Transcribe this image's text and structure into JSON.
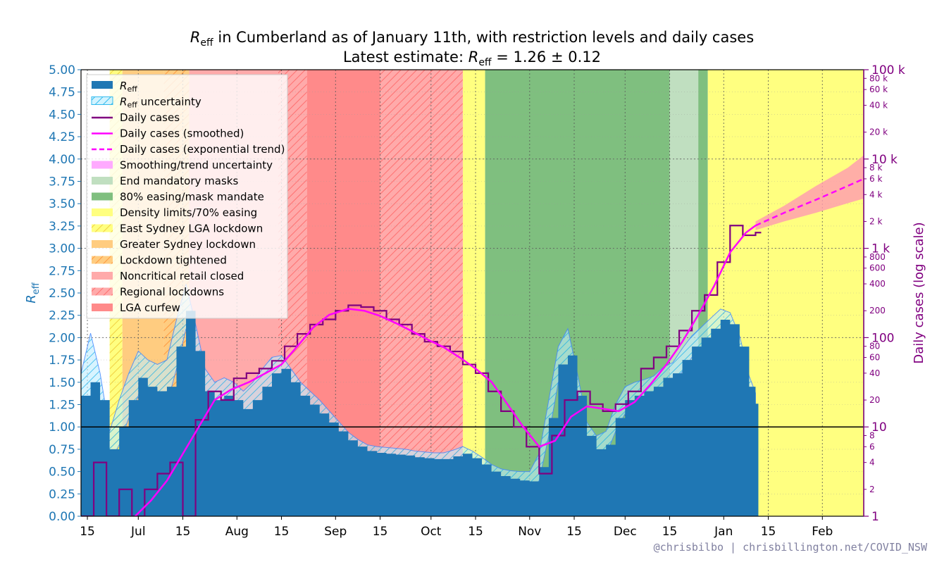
{
  "chart_data": {
    "type": "area",
    "title": "R_eff in Cumberland as of January 11th, with restriction levels and daily cases",
    "subtitle": "Latest estimate: R_eff = 1.26 ± 0.12",
    "title_parts": {
      "line1_symbol": "R",
      "line1_sub": "eff",
      "line1_rest": " in Cumberland as of January 11th, with restriction levels and daily cases",
      "line2_prefix": "Latest estimate: ",
      "line2_symbol": "R",
      "line2_sub": "eff",
      "line2_rest": " = 1.26 ± 0.12"
    },
    "ylabel_left": {
      "symbol": "R",
      "sub": "eff"
    },
    "ylabel_right": "Daily cases (log scale)",
    "ylim_left": [
      0,
      5
    ],
    "ylim_right": [
      1,
      100000
    ],
    "yticks_left": [
      "0.00",
      "0.25",
      "0.50",
      "0.75",
      "1.00",
      "1.25",
      "1.50",
      "1.75",
      "2.00",
      "2.25",
      "2.50",
      "2.75",
      "3.00",
      "3.25",
      "3.50",
      "3.75",
      "4.00",
      "4.25",
      "4.50",
      "4.75",
      "5.00"
    ],
    "yticks_right_major": [
      {
        "value": 1,
        "label": "1"
      },
      {
        "value": 10,
        "label": "10"
      },
      {
        "value": 100,
        "label": "100"
      },
      {
        "value": 1000,
        "label": "1 k"
      },
      {
        "value": 10000,
        "label": "10 k"
      },
      {
        "value": 100000,
        "label": "100 k"
      }
    ],
    "yticks_right_minor": [
      {
        "value": 2,
        "label": "2"
      },
      {
        "value": 4,
        "label": "4"
      },
      {
        "value": 6,
        "label": "6"
      },
      {
        "value": 8,
        "label": "8"
      },
      {
        "value": 20,
        "label": "20"
      },
      {
        "value": 40,
        "label": "40"
      },
      {
        "value": 60,
        "label": "60"
      },
      {
        "value": 80,
        "label": "80"
      },
      {
        "value": 200,
        "label": "200"
      },
      {
        "value": 400,
        "label": "400"
      },
      {
        "value": 600,
        "label": "600"
      },
      {
        "value": 800,
        "label": "800"
      },
      {
        "value": 2000,
        "label": "2 k"
      },
      {
        "value": 4000,
        "label": "4 k"
      },
      {
        "value": 6000,
        "label": "6 k"
      },
      {
        "value": 8000,
        "label": "8 k"
      },
      {
        "value": 20000,
        "label": "20 k"
      },
      {
        "value": 40000,
        "label": "40 k"
      },
      {
        "value": 60000,
        "label": "60 k"
      },
      {
        "value": 80000,
        "label": "80 k"
      }
    ],
    "xlim": [
      "2021-06-13",
      "2022-02-14"
    ],
    "xticks": [
      {
        "date": "2021-06-15",
        "label": "15"
      },
      {
        "date": "2021-07-01",
        "label": "Jul"
      },
      {
        "date": "2021-07-15",
        "label": "15"
      },
      {
        "date": "2021-08-01",
        "label": "Aug"
      },
      {
        "date": "2021-08-15",
        "label": "15"
      },
      {
        "date": "2021-09-01",
        "label": "Sep"
      },
      {
        "date": "2021-09-15",
        "label": "15"
      },
      {
        "date": "2021-10-01",
        "label": "Oct"
      },
      {
        "date": "2021-10-15",
        "label": "15"
      },
      {
        "date": "2021-11-01",
        "label": "Nov"
      },
      {
        "date": "2021-11-15",
        "label": "15"
      },
      {
        "date": "2021-12-01",
        "label": "Dec"
      },
      {
        "date": "2021-12-15",
        "label": "15"
      },
      {
        "date": "2022-01-01",
        "label": "Jan"
      },
      {
        "date": "2022-01-15",
        "label": "15"
      },
      {
        "date": "2022-02-01",
        "label": "Feb"
      }
    ],
    "grid": true,
    "legend_position": "top-left",
    "colors": {
      "reff": "#1f77b4",
      "cases": "#800080",
      "smoothed": "#ff00ff",
      "trend_band": "#ff9ab0",
      "masks_end": "#c0dfc0",
      "easing80": "#7fbf7f",
      "density70": "#ffff80",
      "greater_sydney": "#ffcc80",
      "noncritical": "#ffaaaa",
      "lga_curfew": "#ff8a8a"
    },
    "restriction_periods": [
      {
        "name": "Density limits/70% easing",
        "start": "2021-06-13",
        "end": "2021-06-17",
        "color": "#ffffff"
      },
      {
        "name": "East Sydney LGA lockdown",
        "start": "2021-06-22",
        "end": "2021-06-26",
        "color": "#ffff80"
      },
      {
        "name": "Greater Sydney lockdown",
        "start": "2021-06-26",
        "end": "2021-07-09",
        "color": "#ffcc80"
      },
      {
        "name": "Lockdown tightened",
        "start": "2021-07-09",
        "end": "2021-07-17",
        "color": "#ffbb70"
      },
      {
        "name": "Noncritical retail closed",
        "start": "2021-07-17",
        "end": "2021-08-14",
        "color": "#ffaaaa"
      },
      {
        "name": "Regional lockdowns",
        "start": "2021-08-14",
        "end": "2021-08-23",
        "color": "#ffa0a0"
      },
      {
        "name": "LGA curfew",
        "start": "2021-08-23",
        "end": "2021-09-15",
        "color": "#ff8a8a"
      },
      {
        "name": "Regional lockdowns",
        "start": "2021-09-15",
        "end": "2021-10-11",
        "color": "#ffa0a0"
      },
      {
        "name": "Density limits/70% easing",
        "start": "2021-10-11",
        "end": "2021-10-18",
        "color": "#ffff80"
      },
      {
        "name": "80% easing/mask mandate",
        "start": "2021-10-18",
        "end": "2021-12-15",
        "color": "#7fbf7f"
      },
      {
        "name": "End mandatory masks",
        "start": "2021-12-15",
        "end": "2021-12-24",
        "color": "#c0dfc0"
      },
      {
        "name": "80% easing/mask mandate",
        "start": "2021-12-24",
        "end": "2021-12-27",
        "color": "#7fbf7f"
      },
      {
        "name": "Density limits/70% easing",
        "start": "2021-12-27",
        "end": "2022-02-14",
        "color": "#ffff80"
      }
    ],
    "reff_series": {
      "dates": [
        "2021-06-13",
        "2021-06-16",
        "2021-06-19",
        "2021-06-22",
        "2021-06-25",
        "2021-06-28",
        "2021-07-01",
        "2021-07-04",
        "2021-07-07",
        "2021-07-10",
        "2021-07-13",
        "2021-07-16",
        "2021-07-19",
        "2021-07-22",
        "2021-07-25",
        "2021-07-28",
        "2021-07-31",
        "2021-08-03",
        "2021-08-06",
        "2021-08-09",
        "2021-08-12",
        "2021-08-15",
        "2021-08-18",
        "2021-08-21",
        "2021-08-24",
        "2021-08-27",
        "2021-08-30",
        "2021-09-02",
        "2021-09-05",
        "2021-09-08",
        "2021-09-11",
        "2021-09-14",
        "2021-09-17",
        "2021-09-20",
        "2021-09-23",
        "2021-09-26",
        "2021-09-29",
        "2021-10-02",
        "2021-10-05",
        "2021-10-08",
        "2021-10-11",
        "2021-10-14",
        "2021-10-17",
        "2021-10-20",
        "2021-10-23",
        "2021-10-26",
        "2021-10-29",
        "2021-11-01",
        "2021-11-04",
        "2021-11-07",
        "2021-11-10",
        "2021-11-13",
        "2021-11-16",
        "2021-11-19",
        "2021-11-22",
        "2021-11-25",
        "2021-11-28",
        "2021-12-01",
        "2021-12-04",
        "2021-12-07",
        "2021-12-10",
        "2021-12-13",
        "2021-12-16",
        "2021-12-19",
        "2021-12-22",
        "2021-12-25",
        "2021-12-28",
        "2021-12-31",
        "2022-01-03",
        "2022-01-06",
        "2022-01-09",
        "2022-01-11"
      ],
      "values": [
        1.35,
        1.5,
        1.3,
        0.75,
        1.0,
        1.3,
        1.55,
        1.45,
        1.4,
        1.45,
        1.9,
        2.3,
        1.85,
        1.4,
        1.3,
        1.35,
        1.3,
        1.2,
        1.3,
        1.45,
        1.6,
        1.65,
        1.5,
        1.35,
        1.25,
        1.15,
        1.05,
        0.95,
        0.85,
        0.78,
        0.73,
        0.71,
        0.7,
        0.69,
        0.68,
        0.66,
        0.65,
        0.64,
        0.64,
        0.67,
        0.7,
        0.65,
        0.58,
        0.5,
        0.45,
        0.42,
        0.4,
        0.39,
        0.55,
        1.1,
        1.7,
        1.8,
        1.35,
        0.9,
        0.75,
        0.8,
        1.1,
        1.3,
        1.35,
        1.4,
        1.45,
        1.55,
        1.6,
        1.75,
        1.9,
        2.0,
        2.1,
        2.2,
        2.15,
        1.9,
        1.45,
        1.26
      ],
      "lower": [
        1.1,
        1.3,
        1.0,
        0.6,
        0.8,
        1.1,
        1.35,
        1.25,
        1.2,
        1.25,
        1.65,
        2.1,
        1.6,
        1.2,
        1.1,
        1.15,
        1.1,
        1.0,
        1.1,
        1.25,
        1.45,
        1.5,
        1.35,
        1.2,
        1.1,
        1.0,
        0.92,
        0.85,
        0.76,
        0.7,
        0.66,
        0.64,
        0.63,
        0.62,
        0.61,
        0.6,
        0.59,
        0.58,
        0.58,
        0.6,
        0.62,
        0.57,
        0.5,
        0.42,
        0.37,
        0.33,
        0.3,
        0.28,
        0.4,
        0.9,
        1.5,
        1.6,
        1.15,
        0.75,
        0.62,
        0.68,
        0.95,
        1.15,
        1.22,
        1.28,
        1.33,
        1.43,
        1.48,
        1.62,
        1.78,
        1.88,
        1.98,
        2.08,
        2.02,
        1.78,
        1.33,
        1.14
      ],
      "upper": [
        1.6,
        2.05,
        1.6,
        0.95,
        1.3,
        1.6,
        1.85,
        1.75,
        1.7,
        1.75,
        2.2,
        2.6,
        2.15,
        1.65,
        1.5,
        1.55,
        1.5,
        1.4,
        1.5,
        1.65,
        1.78,
        1.8,
        1.65,
        1.5,
        1.4,
        1.3,
        1.18,
        1.06,
        0.94,
        0.86,
        0.8,
        0.78,
        0.77,
        0.76,
        0.75,
        0.73,
        0.72,
        0.71,
        0.71,
        0.74,
        0.78,
        0.73,
        0.66,
        0.58,
        0.53,
        0.51,
        0.5,
        0.5,
        0.7,
        1.3,
        1.9,
        2.1,
        1.6,
        1.05,
        0.9,
        0.95,
        1.25,
        1.45,
        1.5,
        1.53,
        1.57,
        1.67,
        1.72,
        1.88,
        2.02,
        2.12,
        2.22,
        2.32,
        2.28,
        2.02,
        1.57,
        1.38
      ]
    },
    "daily_cases": {
      "dates": [
        "2021-06-13",
        "2021-06-17",
        "2021-06-21",
        "2021-06-25",
        "2021-06-29",
        "2021-07-03",
        "2021-07-07",
        "2021-07-11",
        "2021-07-15",
        "2021-07-19",
        "2021-07-23",
        "2021-07-27",
        "2021-07-31",
        "2021-08-04",
        "2021-08-08",
        "2021-08-12",
        "2021-08-16",
        "2021-08-20",
        "2021-08-24",
        "2021-08-28",
        "2021-09-01",
        "2021-09-05",
        "2021-09-09",
        "2021-09-13",
        "2021-09-17",
        "2021-09-21",
        "2021-09-25",
        "2021-09-29",
        "2021-10-03",
        "2021-10-07",
        "2021-10-11",
        "2021-10-15",
        "2021-10-19",
        "2021-10-23",
        "2021-10-27",
        "2021-10-31",
        "2021-11-04",
        "2021-11-08",
        "2021-11-12",
        "2021-11-16",
        "2021-11-20",
        "2021-11-24",
        "2021-11-28",
        "2021-12-02",
        "2021-12-06",
        "2021-12-10",
        "2021-12-14",
        "2021-12-18",
        "2021-12-22",
        "2021-12-26",
        "2021-12-30",
        "2022-01-03",
        "2022-01-07",
        "2022-01-11"
      ],
      "values": [
        1,
        4,
        1,
        2,
        1,
        2,
        3,
        4,
        1,
        12,
        25,
        20,
        35,
        40,
        45,
        55,
        80,
        110,
        140,
        160,
        200,
        230,
        220,
        200,
        160,
        140,
        110,
        90,
        80,
        70,
        50,
        40,
        25,
        15,
        10,
        6,
        3,
        8,
        20,
        25,
        18,
        15,
        18,
        25,
        45,
        60,
        80,
        120,
        200,
        300,
        700,
        1800,
        1400,
        1500
      ]
    },
    "smoothed_cases": {
      "dates": [
        "2021-06-30",
        "2021-07-05",
        "2021-07-10",
        "2021-07-15",
        "2021-07-20",
        "2021-07-25",
        "2021-07-30",
        "2021-08-05",
        "2021-08-10",
        "2021-08-15",
        "2021-08-20",
        "2021-08-25",
        "2021-08-30",
        "2021-09-05",
        "2021-09-10",
        "2021-09-15",
        "2021-09-20",
        "2021-09-25",
        "2021-09-30",
        "2021-10-05",
        "2021-10-10",
        "2021-10-15",
        "2021-10-20",
        "2021-10-25",
        "2021-10-30",
        "2021-11-04",
        "2021-11-09",
        "2021-11-14",
        "2021-11-19",
        "2021-11-24",
        "2021-11-29",
        "2021-12-04",
        "2021-12-09",
        "2021-12-14",
        "2021-12-19",
        "2021-12-24",
        "2021-12-29",
        "2022-01-03",
        "2022-01-08",
        "2022-01-11"
      ],
      "values": [
        1,
        1.5,
        2.5,
        5,
        10,
        20,
        26,
        32,
        40,
        50,
        80,
        130,
        180,
        210,
        200,
        175,
        145,
        118,
        95,
        78,
        60,
        45,
        32,
        18,
        10,
        6,
        7,
        13,
        17,
        16,
        15,
        19,
        30,
        50,
        90,
        180,
        380,
        900,
        1500,
        1800
      ]
    },
    "trend": {
      "dates": [
        "2022-01-11",
        "2022-01-20",
        "2022-01-30",
        "2022-02-09",
        "2022-02-14"
      ],
      "values": [
        1800,
        2500,
        3500,
        5000,
        6000
      ],
      "lower": [
        1600,
        2000,
        2500,
        3200,
        3600
      ],
      "upper": [
        2000,
        3000,
        5000,
        8000,
        11000
      ]
    },
    "hline": {
      "value": 1.0
    }
  },
  "legend": {
    "reff": {
      "symbol": "R",
      "sub": "eff"
    },
    "reff_uncertainty": {
      "symbol": "R",
      "sub": "eff",
      "rest": " uncertainty"
    },
    "items": [
      "Daily cases",
      "Daily cases (smoothed)",
      "Daily cases (exponential trend)",
      "Smoothing/trend uncertainty",
      "End mandatory masks",
      "80% easing/mask mandate",
      "Density limits/70% easing",
      "East Sydney LGA lockdown",
      "Greater Sydney lockdown",
      "Lockdown tightened",
      "Noncritical retail closed",
      "Regional lockdowns",
      "LGA curfew"
    ]
  },
  "credit": "@chrisbilbo | chrisbillington.net/COVID_NSW"
}
